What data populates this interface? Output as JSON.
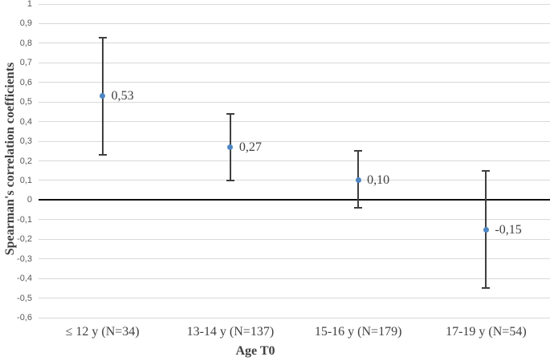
{
  "chart_data": {
    "type": "scatter",
    "title": "",
    "xlabel": "Age T0",
    "ylabel": "Spearman's correlation coefficients",
    "ylim": [
      -0.6,
      1.0
    ],
    "ytick_step": 0.1,
    "decimal_separator": ",",
    "grid": true,
    "zero_line_at": 0,
    "legend": "none",
    "categories": [
      "≤ 12 y (N=34)",
      "13-14 y (N=137)",
      "15-16 y (N=179)",
      "17-19 y (N=54)"
    ],
    "ytick_labels": [
      "1",
      "0,9",
      "0,8",
      "0,7",
      "0,6",
      "0,5",
      "0,4",
      "0,3",
      "0,2",
      "0,1",
      "0",
      "-0,1",
      "-0,2",
      "-0,3",
      "-0,4",
      "-0,5",
      "-0,6"
    ],
    "points": [
      {
        "category": "≤ 12 y (N=34)",
        "value": 0.53,
        "label": "0,53",
        "ci_low": 0.23,
        "ci_high": 0.83
      },
      {
        "category": "13-14 y (N=137)",
        "value": 0.27,
        "label": "0,27",
        "ci_low": 0.1,
        "ci_high": 0.44
      },
      {
        "category": "15-16 y (N=179)",
        "value": 0.1,
        "label": "0,10",
        "ci_low": -0.04,
        "ci_high": 0.25
      },
      {
        "category": "17-19 y (N=54)",
        "value": -0.15,
        "label": "-0,15",
        "ci_low": -0.45,
        "ci_high": 0.15
      }
    ],
    "colors": {
      "marker": "#4d86c4",
      "error_bar": "#3f3f3f",
      "gridline": "#d9d9d9",
      "zero_line": "#111111",
      "ytick_text": "#595959",
      "label_text": "#404040"
    }
  }
}
